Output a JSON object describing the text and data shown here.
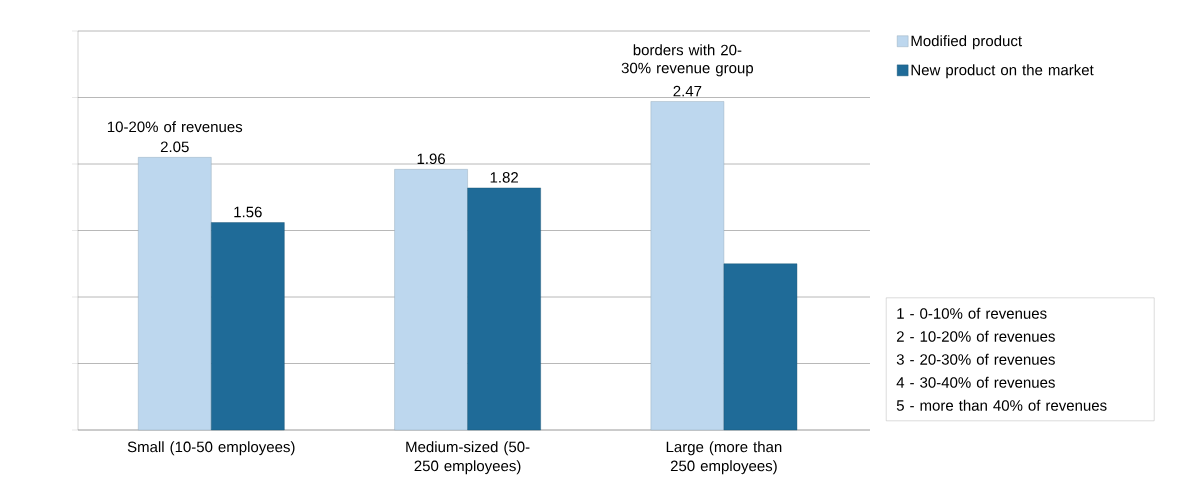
{
  "chart_data": {
    "type": "bar",
    "categories": [
      "Small (10-50 employees)",
      "Medium-sized (50-250 employees)",
      "Large (more than 250 employees)"
    ],
    "series": [
      {
        "name": "Modified product",
        "color": "#bdd7ee",
        "values": [
          2.05,
          1.96,
          2.47
        ],
        "value_labels": [
          "2.05",
          "1.96",
          "2.47"
        ]
      },
      {
        "name": "New product on the market",
        "color": "#1f6b98",
        "values": [
          1.56,
          1.82,
          1.25
        ],
        "value_labels": [
          "1.56",
          "1.82",
          null
        ]
      }
    ],
    "ylim": [
      0,
      3
    ],
    "yticks": [
      {
        "value": 0,
        "label": null
      },
      {
        "value": 0.5,
        "label": null
      },
      {
        "value": 1,
        "label": null
      },
      {
        "value": 1.5,
        "label": null
      },
      {
        "value": 2,
        "label": null
      },
      {
        "value": 2.5,
        "label": null
      },
      {
        "value": 3,
        "label": null
      }
    ],
    "tick_labels": "x",
    "grid": "y",
    "legend": "top right",
    "annotations": [
      {
        "text": "10-20% of revenues",
        "x": "Small (10-50 employees)",
        "y": 2.05
      },
      {
        "text": "borders with 20-30% revenue group",
        "x": "Large (more than 250 employees)",
        "y": 2.47
      },
      "1 - 0-10% of revenues",
      "2 - 10-20% of revenues",
      "3 - 20-30% of revenues",
      "4 - 30-40% of revenues",
      "5 - more than 40% of revenues"
    ]
  }
}
